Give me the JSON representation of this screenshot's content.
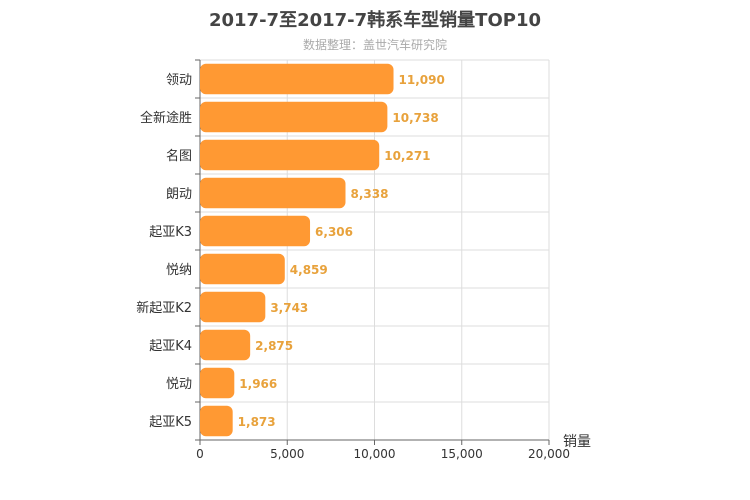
{
  "title": "2017-7至2017-7韩系车型销量TOP10",
  "subtitle": "数据整理：盖世汽车研究院",
  "colors": {
    "bar": "#ff9933",
    "value_label": "#e8a23c",
    "grid": "#dddddd",
    "axis": "#666666"
  },
  "chart_data": {
    "type": "bar",
    "orientation": "horizontal",
    "title": "2017-7至2017-7韩系车型销量TOP10",
    "subtitle": "数据整理：盖世汽车研究院",
    "xlabel": "销量",
    "ylabel": "",
    "categories": [
      "领动",
      "全新途胜",
      "名图",
      "朗动",
      "起亚K3",
      "悦纳",
      "新起亚K2",
      "起亚K4",
      "悦动",
      "起亚K5"
    ],
    "values": [
      11090,
      10738,
      10271,
      8338,
      6306,
      4859,
      3743,
      2875,
      1966,
      1873
    ],
    "value_labels": [
      "11,090",
      "10,738",
      "10,271",
      "8,338",
      "6,306",
      "4,859",
      "3,743",
      "2,875",
      "1,966",
      "1,873"
    ],
    "xlim": [
      0,
      20000
    ],
    "xticks": [
      0,
      5000,
      10000,
      15000,
      20000
    ],
    "xtick_labels": [
      "0",
      "5,000",
      "10,000",
      "15,000",
      "20,000"
    ],
    "grid": true
  }
}
